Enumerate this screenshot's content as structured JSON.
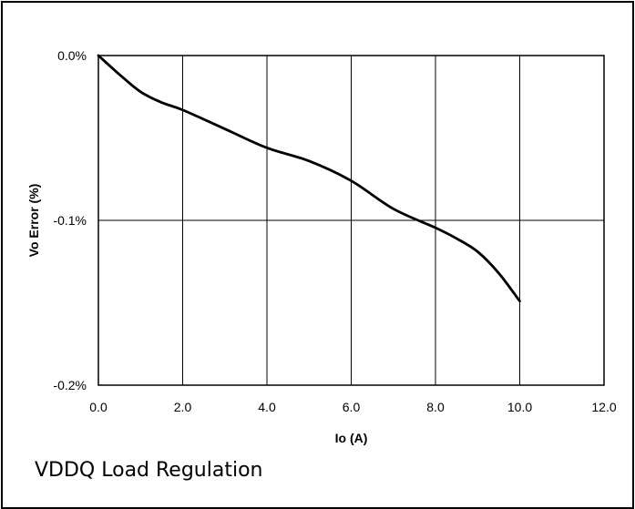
{
  "caption": "VDDQ Load Regulation",
  "chart_data": {
    "type": "line",
    "xlabel": "Io (A)",
    "ylabel": "Vo Error (%)",
    "xlim": [
      0,
      12
    ],
    "ylim": [
      -0.2,
      0
    ],
    "x_ticks": [
      0,
      2,
      4,
      6,
      8,
      10,
      12
    ],
    "x_tick_labels": [
      "0.0",
      "2.0",
      "4.0",
      "6.0",
      "8.0",
      "10.0",
      "12.0"
    ],
    "y_ticks": [
      0,
      -0.1,
      -0.2
    ],
    "y_tick_labels": [
      "0.0%",
      "-0.1%",
      "-0.2%"
    ],
    "grid": true,
    "series": [
      {
        "color": "#000000",
        "x": [
          0,
          0.5,
          1.0,
          1.5,
          2.0,
          3.0,
          4.0,
          5.0,
          6.0,
          7.0,
          8.0,
          8.5,
          9.0,
          9.5,
          10.0
        ],
        "y": [
          0,
          -0.0115,
          -0.022,
          -0.0285,
          -0.033,
          -0.0445,
          -0.056,
          -0.064,
          -0.076,
          -0.093,
          -0.1045,
          -0.111,
          -0.119,
          -0.132,
          -0.149
        ]
      }
    ]
  }
}
